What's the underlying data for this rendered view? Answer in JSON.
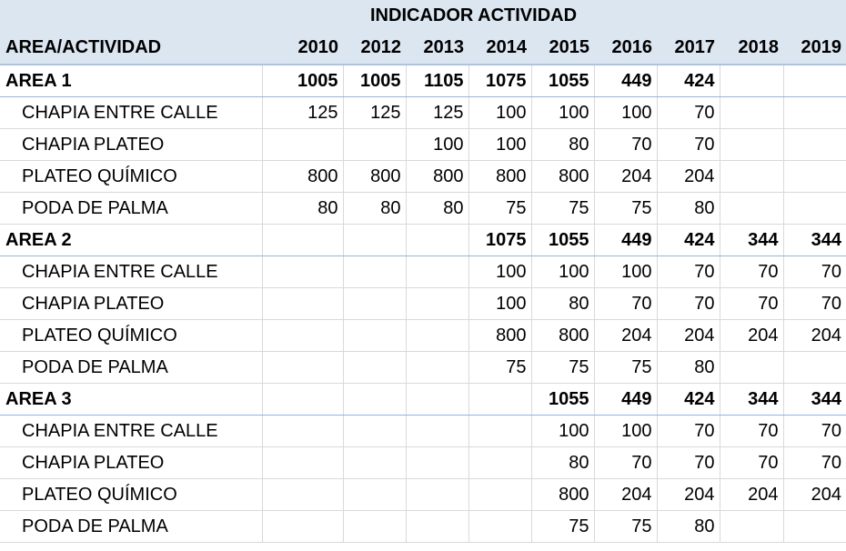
{
  "header": {
    "title": "INDICADOR ACTIVIDAD",
    "row_label": "AREA/ACTIVIDAD",
    "years": [
      "2010",
      "2012",
      "2013",
      "2014",
      "2015",
      "2016",
      "2017",
      "2018",
      "2019"
    ]
  },
  "rows": [
    {
      "kind": "area",
      "label": "AREA 1",
      "values": [
        "1005",
        "1005",
        "1105",
        "1075",
        "1055",
        "449",
        "424",
        "",
        ""
      ]
    },
    {
      "kind": "activity",
      "label": "CHAPIA ENTRE CALLE",
      "values": [
        "125",
        "125",
        "125",
        "100",
        "100",
        "100",
        "70",
        "",
        ""
      ]
    },
    {
      "kind": "activity",
      "label": "CHAPIA PLATEO",
      "values": [
        "",
        "",
        "100",
        "100",
        "80",
        "70",
        "70",
        "",
        ""
      ]
    },
    {
      "kind": "activity",
      "label": "PLATEO QUÍMICO",
      "values": [
        "800",
        "800",
        "800",
        "800",
        "800",
        "204",
        "204",
        "",
        ""
      ]
    },
    {
      "kind": "activity",
      "label": "PODA DE PALMA",
      "values": [
        "80",
        "80",
        "80",
        "75",
        "75",
        "75",
        "80",
        "",
        ""
      ]
    },
    {
      "kind": "area",
      "label": "AREA 2",
      "values": [
        "",
        "",
        "",
        "1075",
        "1055",
        "449",
        "424",
        "344",
        "344"
      ]
    },
    {
      "kind": "activity",
      "label": "CHAPIA ENTRE CALLE",
      "values": [
        "",
        "",
        "",
        "100",
        "100",
        "100",
        "70",
        "70",
        "70"
      ]
    },
    {
      "kind": "activity",
      "label": "CHAPIA PLATEO",
      "values": [
        "",
        "",
        "",
        "100",
        "80",
        "70",
        "70",
        "70",
        "70"
      ]
    },
    {
      "kind": "activity",
      "label": "PLATEO QUÍMICO",
      "values": [
        "",
        "",
        "",
        "800",
        "800",
        "204",
        "204",
        "204",
        "204"
      ]
    },
    {
      "kind": "activity",
      "label": "PODA DE PALMA",
      "values": [
        "",
        "",
        "",
        "75",
        "75",
        "75",
        "80",
        "",
        ""
      ]
    },
    {
      "kind": "area",
      "label": "AREA 3",
      "values": [
        "",
        "",
        "",
        "",
        "1055",
        "449",
        "424",
        "344",
        "344"
      ]
    },
    {
      "kind": "activity",
      "label": "CHAPIA ENTRE CALLE",
      "values": [
        "",
        "",
        "",
        "",
        "100",
        "100",
        "70",
        "70",
        "70"
      ]
    },
    {
      "kind": "activity",
      "label": "CHAPIA PLATEO",
      "values": [
        "",
        "",
        "",
        "",
        "80",
        "70",
        "70",
        "70",
        "70"
      ]
    },
    {
      "kind": "activity",
      "label": "PLATEO QUÍMICO",
      "values": [
        "",
        "",
        "",
        "",
        "800",
        "204",
        "204",
        "204",
        "204"
      ]
    },
    {
      "kind": "activity",
      "label": "PODA DE PALMA",
      "values": [
        "",
        "",
        "",
        "",
        "75",
        "75",
        "80",
        "",
        ""
      ]
    }
  ]
}
